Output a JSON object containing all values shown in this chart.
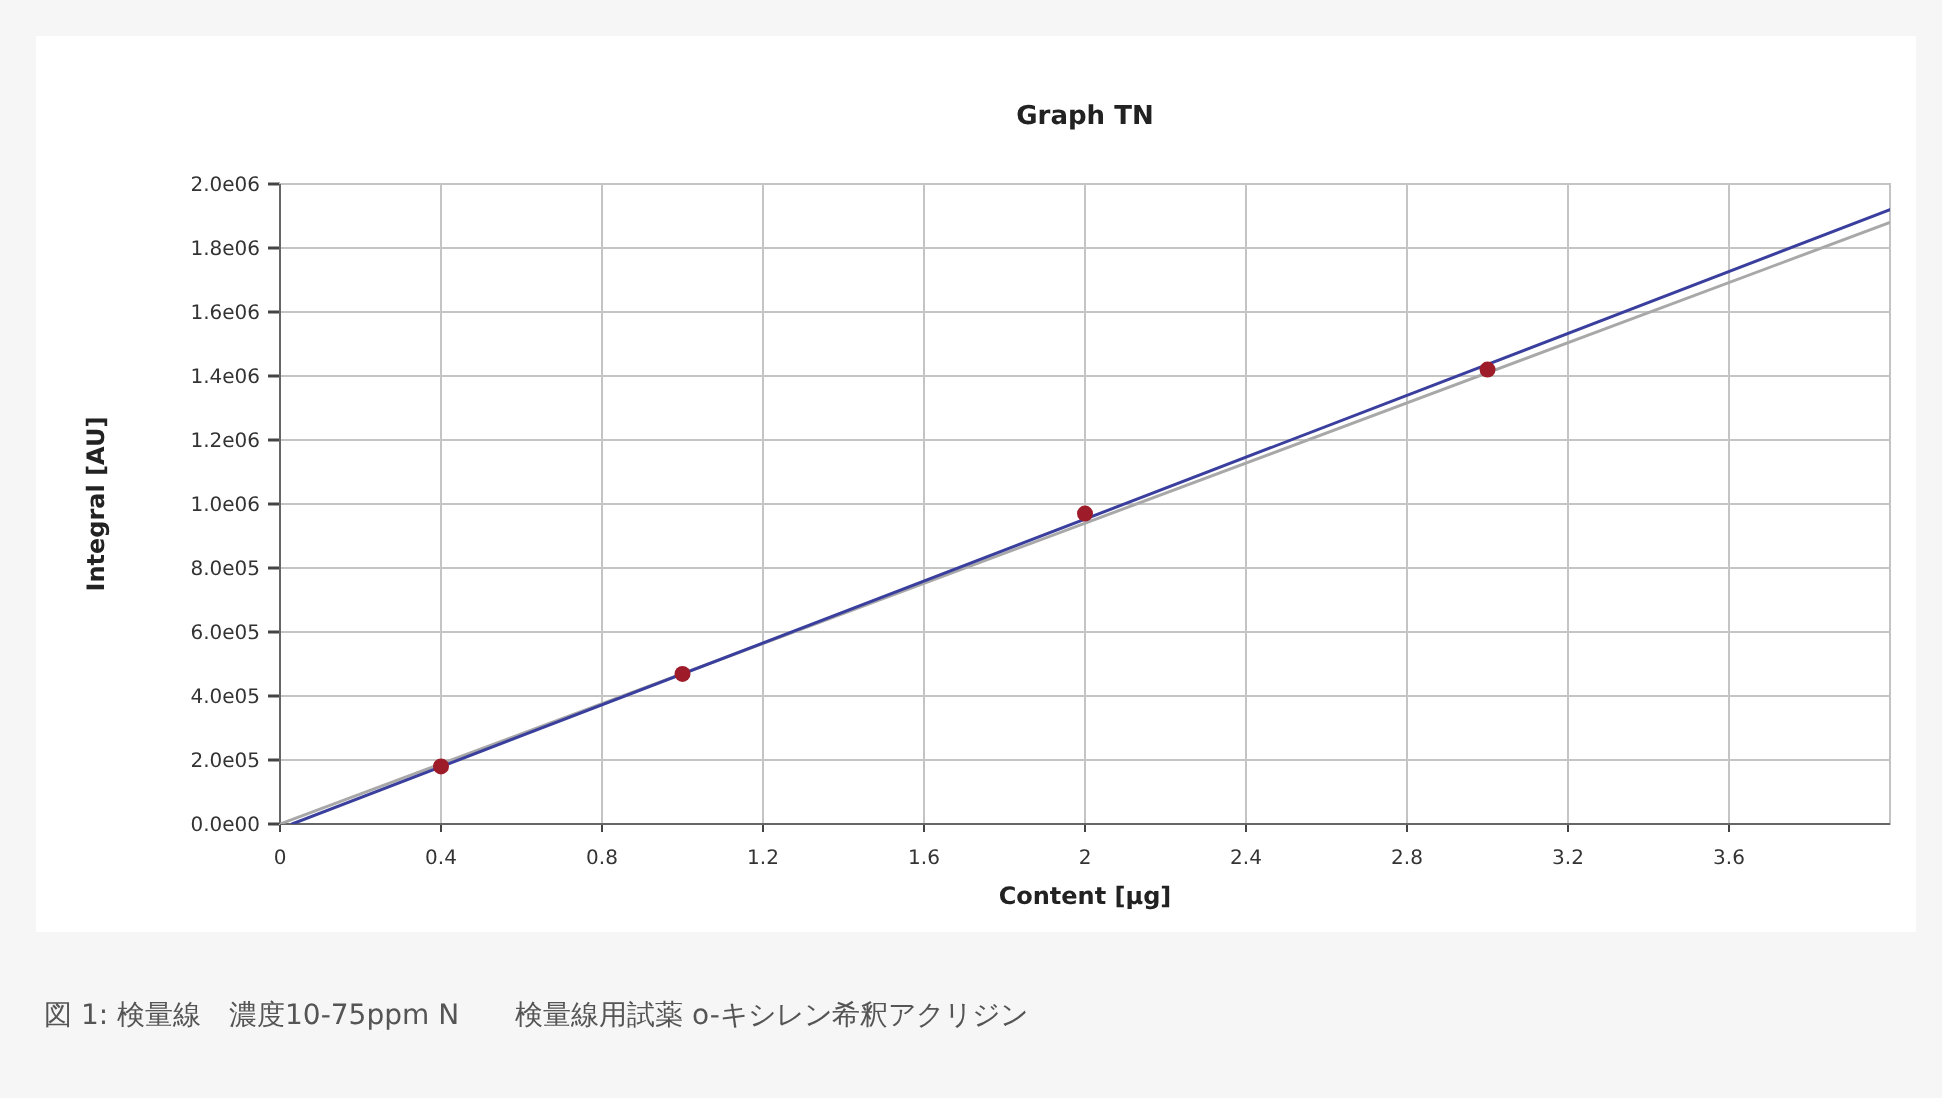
{
  "chart_data": {
    "type": "scatter",
    "title": "Graph TN",
    "xlabel": "Content [µg]",
    "ylabel": "Integral [AU]",
    "series": [
      {
        "type": "line",
        "color": "#a8a8a8",
        "x": [
          0,
          4
        ],
        "values": [
          0,
          1880000
        ]
      },
      {
        "type": "line",
        "color": "#3a3f9e",
        "x": [
          0.03,
          4
        ],
        "values": [
          0,
          1920000
        ]
      },
      {
        "color": "#9e1b2a",
        "marker": "circle",
        "x": [
          0.4,
          1,
          2,
          3
        ],
        "values": [
          180000,
          469000,
          970000,
          1420000
        ]
      }
    ],
    "xlim": [
      0,
      4
    ],
    "xticks": [
      0,
      0.4,
      0.8,
      1.2,
      1.6,
      2,
      2.4,
      2.8,
      3.2,
      3.6
    ],
    "ylim": [
      0,
      2000000
    ],
    "yticks": [
      {
        "value": 0,
        "label": "0.0e00"
      },
      {
        "value": 200000,
        "label": "2.0e05"
      },
      {
        "value": 400000,
        "label": "4.0e05"
      },
      {
        "value": 600000,
        "label": "6.0e05"
      },
      {
        "value": 800000,
        "label": "8.0e05"
      },
      {
        "value": 1000000,
        "label": "1.0e06"
      },
      {
        "value": 1200000,
        "label": "1.2e06"
      },
      {
        "value": 1400000,
        "label": "1.4e06"
      },
      {
        "value": 1600000,
        "label": "1.6e06"
      },
      {
        "value": 1800000,
        "label": "1.8e06"
      },
      {
        "value": 2000000,
        "label": "2.0e06"
      }
    ],
    "grid": true,
    "annotations": [
      "図 1: 検量線　濃度10-75ppm N　　検量線用試薬 o-キシレン希釈アクリジン"
    ]
  }
}
